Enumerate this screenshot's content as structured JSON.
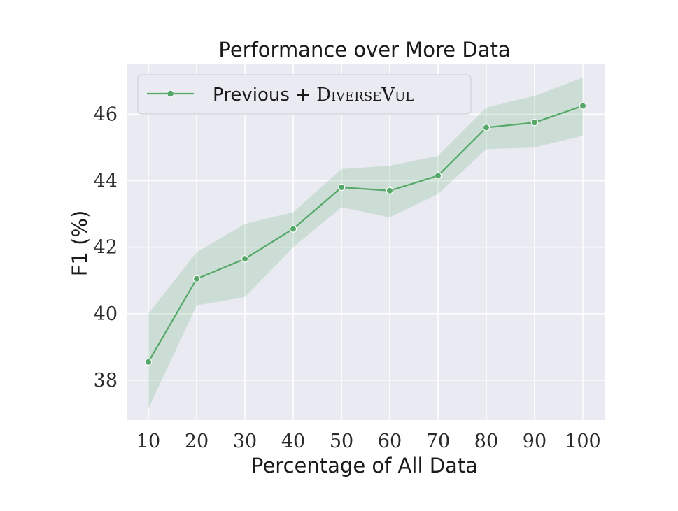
{
  "chart_data": {
    "type": "line",
    "title": "Performance over More Data",
    "xlabel": "Percentage of All Data",
    "ylabel": "F1 (%)",
    "x": [
      10,
      20,
      30,
      40,
      50,
      60,
      70,
      80,
      90,
      100
    ],
    "xticks": [
      "10",
      "20",
      "30",
      "40",
      "50",
      "60",
      "70",
      "80",
      "90",
      "100"
    ],
    "yticks": [
      38,
      40,
      42,
      44,
      46
    ],
    "ytick_labels": [
      "38",
      "40",
      "42",
      "44",
      "46"
    ],
    "xlim": [
      5.5,
      104.5
    ],
    "ylim": [
      36.8,
      47.5
    ],
    "grid": true,
    "legend_position": "top-left",
    "series": [
      {
        "name": "Previous + DiverseVul",
        "legend_prefix": "Previous + ",
        "legend_smallcaps": "DiverseVul",
        "color": "#55a868",
        "values": [
          38.55,
          41.05,
          41.65,
          42.55,
          43.8,
          43.7,
          44.15,
          45.6,
          45.75,
          46.25
        ],
        "lower": [
          37.15,
          40.25,
          40.5,
          42.0,
          43.2,
          42.9,
          43.6,
          44.95,
          45.0,
          45.35
        ],
        "upper": [
          40.0,
          41.85,
          42.7,
          43.05,
          44.35,
          44.45,
          44.75,
          46.2,
          46.55,
          47.1
        ]
      }
    ],
    "colors": {
      "plot_background": "#eaeaf2",
      "grid": "#ffffff",
      "band": "#55a868"
    }
  }
}
